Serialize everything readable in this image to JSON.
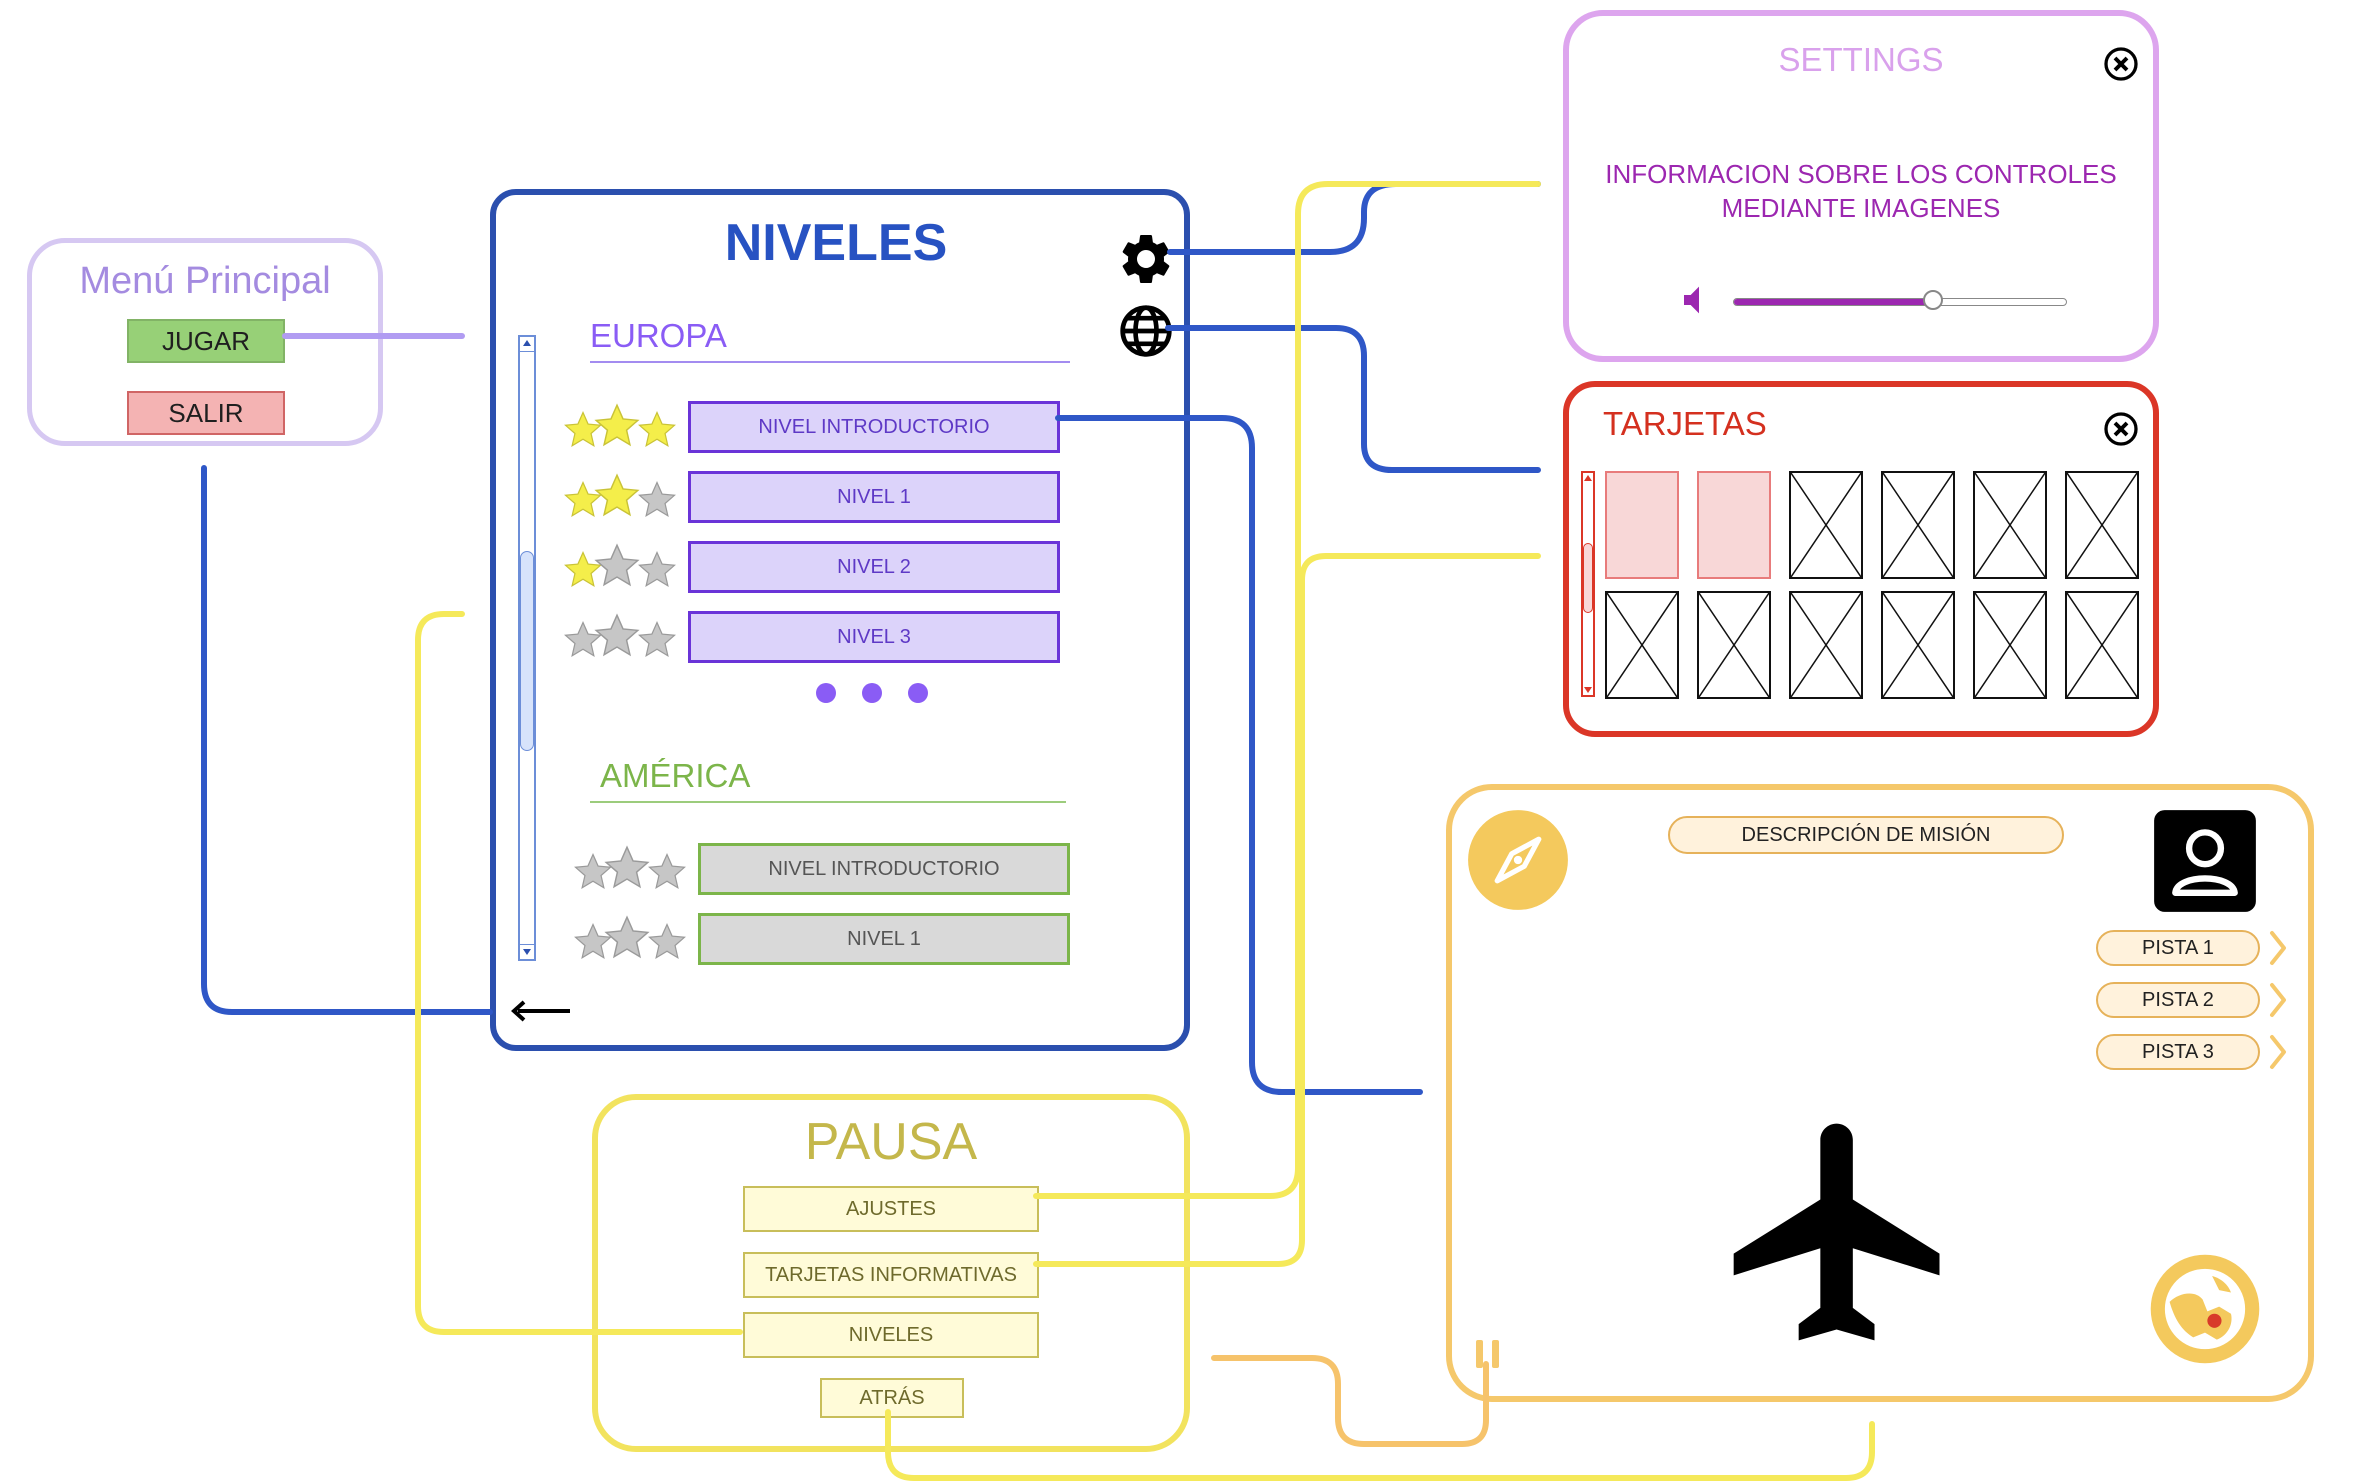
{
  "colors": {
    "menu": "#d6c8f2",
    "menu_title": "#a48be0",
    "jugar_bg": "#97d077",
    "jugar_border": "#82b366",
    "salir_bg": "#f4b3b3",
    "salir_border": "#d06565",
    "niveles_border": "#2b4fae",
    "niveles_title": "#2752c2",
    "level_purple_bg": "#dcd3fa",
    "level_purple_border": "#6a34d8",
    "level_gray_bg": "#d9d9d9",
    "level_gray_border": "#7cb54a",
    "star_yellow": "#f4ee4a",
    "star_gray": "#c6c6c6",
    "europa": "#8a5cf5",
    "america": "#7cb54a",
    "settings_border": "#dda5ee",
    "settings_title": "#d9a1ec",
    "settings_text": "#9c27b0",
    "tarjetas_border": "#db3627",
    "tarjetas_title": "#d4301f",
    "card_pink": "#f8d7d7",
    "game_border": "#f5c86b",
    "pill_bg": "#fff2dc",
    "pausa_border": "#f2e35e",
    "pausa_title": "#c4b74b",
    "pausa_btn_bg": "#fffbd8",
    "pausa_btn_border": "#c8be5a",
    "wire_blue": "#2f57c7",
    "wire_yellow": "#f5e95a",
    "wire_purple": "#b19cf2",
    "wire_orange": "#f6c36b"
  },
  "menu": {
    "title": "Menú Principal",
    "play_label": "JUGAR",
    "exit_label": "SALIR"
  },
  "niveles": {
    "title": "NIVELES",
    "icons": [
      "gear-icon",
      "globe-icon",
      "back-arrow-icon"
    ],
    "europa": {
      "title": "EUROPA",
      "levels": [
        {
          "label": "NIVEL INTRODUCTORIO",
          "stars": 3
        },
        {
          "label": "NIVEL 1",
          "stars": 2
        },
        {
          "label": "NIVEL 2",
          "stars": 1
        },
        {
          "label": "NIVEL 3",
          "stars": 0
        }
      ]
    },
    "america": {
      "title": "AMÉRICA",
      "levels": [
        {
          "label": "NIVEL INTRODUCTORIO",
          "stars": 0
        },
        {
          "label": "NIVEL 1",
          "stars": 0
        }
      ]
    }
  },
  "settings": {
    "title": "SETTINGS",
    "info_line1": "INFORMACION SOBRE LOS CONTROLES",
    "info_line2": "MEDIANTE IMAGENES",
    "volume": 0.6,
    "icons": [
      "close-icon",
      "speaker-icon"
    ]
  },
  "tarjetas": {
    "title": "TARJETAS",
    "cards_unlocked": 2,
    "cards_total": 12
  },
  "game": {
    "mission_label": "DESCRIPCIÓN DE MISIÓN",
    "hints": [
      "PISTA 1",
      "PISTA 2",
      "PISTA 3"
    ],
    "icons": [
      "compass-icon",
      "user-icon",
      "airplane-icon",
      "globe-map-icon",
      "pause-icon"
    ]
  },
  "pausa": {
    "title": "PAUSA",
    "buttons": {
      "settings": "AJUSTES",
      "cards": "TARJETAS INFORMATIVAS",
      "levels": "NIVELES",
      "back": "ATRÁS"
    }
  }
}
